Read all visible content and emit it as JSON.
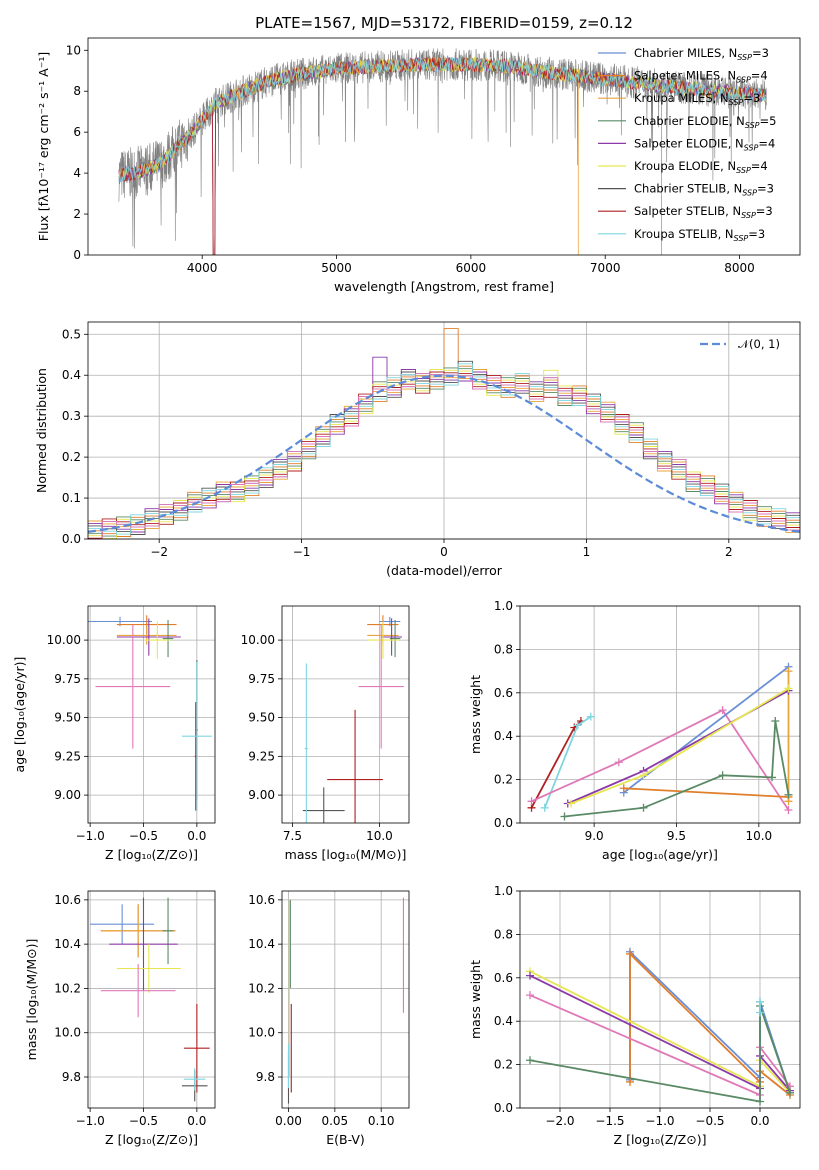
{
  "colors": {
    "Chabrier MILES": "#6a8fd6",
    "Salpeter MILES": "#e07e2c",
    "Kroupa MILES": "#e8a33b",
    "Chabrier ELODIE": "#5a8a65",
    "Salpeter ELODIE": "#8b3aa8",
    "Kroupa ELODIE": "#e6e650",
    "Chabrier STELIB": "#555555",
    "Salpeter STELIB": "#b02020",
    "Kroupa STELIB": "#7fd6e0",
    "pink": "#e078b8",
    "spectrum": "#808080",
    "normal": "#5b8bd9"
  },
  "chart_data": [
    {
      "id": "spectrum",
      "type": "line",
      "title": "PLATE=1567, MJD=53172, FIBERID=0159, z=0.12",
      "xlabel": "wavelength [Angstrom, rest frame]",
      "ylabel": "Flux [fλ10⁻¹⁷ erg cm⁻² s⁻¹ A⁻¹]",
      "xlim": [
        3150,
        8450
      ],
      "ylim": [
        0,
        10.6
      ],
      "xticks": [
        4000,
        5000,
        6000,
        7000,
        8000
      ],
      "yticks": [
        0,
        2,
        4,
        6,
        8,
        10
      ],
      "continuum": {
        "x": [
          3380,
          3500,
          3600,
          3700,
          3800,
          3900,
          4000,
          4100,
          4300,
          4500,
          4700,
          5000,
          5300,
          5600,
          6000,
          6300,
          6600,
          7000,
          7400,
          7800,
          8200
        ],
        "y": [
          3.9,
          4.0,
          4.2,
          4.5,
          5.2,
          5.8,
          6.6,
          7.4,
          8.0,
          8.5,
          8.8,
          9.1,
          9.2,
          9.3,
          9.3,
          9.2,
          8.9,
          8.6,
          8.3,
          8.0,
          7.8
        ]
      },
      "legend": [
        {
          "name": "Chabrier MILES",
          "n_ssp": "3"
        },
        {
          "name": "Salpeter MILES",
          "n_ssp": "4"
        },
        {
          "name": "Kroupa MILES",
          "n_ssp": "3"
        },
        {
          "name": "Chabrier ELODIE",
          "n_ssp": "5"
        },
        {
          "name": "Salpeter ELODIE",
          "n_ssp": "4"
        },
        {
          "name": "Kroupa ELODIE",
          "n_ssp": "4"
        },
        {
          "name": "Chabrier STELIB",
          "n_ssp": "3"
        },
        {
          "name": "Salpeter STELIB",
          "n_ssp": "3"
        },
        {
          "name": "Kroupa STELIB",
          "n_ssp": "3"
        }
      ]
    },
    {
      "id": "residuals",
      "type": "line",
      "xlabel": "(data-model)/error",
      "ylabel": "Normed distribution",
      "xlim": [
        -2.5,
        2.5
      ],
      "ylim": [
        0,
        0.53
      ],
      "xticks": [
        -2,
        -1,
        0,
        1,
        2
      ],
      "yticks": [
        0.0,
        0.1,
        0.2,
        0.3,
        0.4,
        0.5
      ],
      "legend_label": "𝒩(0, 1)",
      "bin_width": 0.1,
      "base_hist": [
        0.02,
        0.025,
        0.03,
        0.035,
        0.05,
        0.06,
        0.07,
        0.09,
        0.1,
        0.115,
        0.115,
        0.13,
        0.15,
        0.17,
        0.19,
        0.22,
        0.25,
        0.28,
        0.3,
        0.33,
        0.36,
        0.37,
        0.39,
        0.38,
        0.39,
        0.4,
        0.41,
        0.39,
        0.375,
        0.37,
        0.38,
        0.36,
        0.37,
        0.35,
        0.35,
        0.33,
        0.31,
        0.28,
        0.26,
        0.22,
        0.19,
        0.17,
        0.14,
        0.13,
        0.11,
        0.09,
        0.07,
        0.055,
        0.05,
        0.04
      ]
    },
    {
      "id": "Z-age",
      "type": "scatter",
      "xlabel": "Z [log₁₀(Z/Z⊙)]",
      "ylabel": "age  [log₁₀(age/yr)]",
      "xlim": [
        -1.02,
        0.17
      ],
      "ylim": [
        8.82,
        10.22
      ],
      "xticks": [
        -1.0,
        -0.5,
        0.0
      ],
      "yticks": [
        9.0,
        9.25,
        9.5,
        9.75,
        10.0
      ],
      "points": [
        {
          "series": "Chabrier MILES",
          "x": -0.72,
          "y": 10.12,
          "xerr": 0.3,
          "yerr": 0.03
        },
        {
          "series": "Salpeter MILES",
          "x": -0.47,
          "y": 10.1,
          "xerr": 0.28,
          "yerr": 0.06
        },
        {
          "series": "Kroupa MILES",
          "x": -0.47,
          "y": 10.03,
          "xerr": 0.28,
          "yerr": 0.06
        },
        {
          "series": "Chabrier ELODIE",
          "x": -0.27,
          "y": 10.01,
          "xerr": 0.05,
          "yerr": 0.12
        },
        {
          "series": "Salpeter ELODIE",
          "x": -0.45,
          "y": 10.02,
          "xerr": 0.3,
          "yerr": 0.12
        },
        {
          "series": "Kroupa ELODIE",
          "x": -0.37,
          "y": 10.0,
          "xerr": 0.12,
          "yerr": 0.12
        },
        {
          "series": "pink",
          "x": -0.6,
          "y": 9.7,
          "xerr": 0.35,
          "yerr": 0.4
        },
        {
          "series": "Chabrier STELIB",
          "x": 0.0,
          "y": 9.42,
          "xerr": 0.01,
          "yerr": 0.45
        },
        {
          "series": "Salpeter STELIB",
          "x": -0.01,
          "y": 9.25,
          "xerr": 0.01,
          "yerr": 0.35
        },
        {
          "series": "Kroupa STELIB",
          "x": 0.0,
          "y": 9.38,
          "xerr": 0.14,
          "yerr": 0.48
        }
      ]
    },
    {
      "id": "mass-age",
      "type": "scatter",
      "xlabel": "mass [log₁₀(M/M⊙)]",
      "ylabel": "",
      "xlim": [
        7.2,
        10.85
      ],
      "ylim": [
        8.82,
        10.22
      ],
      "xticks": [
        7.5,
        10.0
      ],
      "yticks": [
        9.0,
        9.25,
        9.5,
        9.75,
        10.0
      ],
      "points": [
        {
          "series": "Chabrier MILES",
          "x": 10.3,
          "y": 10.12,
          "xerr": 0.3,
          "yerr": 0.03
        },
        {
          "series": "Salpeter MILES",
          "x": 10.1,
          "y": 10.1,
          "xerr": 0.45,
          "yerr": 0.06
        },
        {
          "series": "Kroupa MILES",
          "x": 10.1,
          "y": 10.03,
          "xerr": 0.45,
          "yerr": 0.06
        },
        {
          "series": "Chabrier ELODIE",
          "x": 10.45,
          "y": 10.01,
          "xerr": 0.15,
          "yerr": 0.12
        },
        {
          "series": "Salpeter ELODIE",
          "x": 10.35,
          "y": 10.02,
          "xerr": 0.3,
          "yerr": 0.12
        },
        {
          "series": "Kroupa ELODIE",
          "x": 10.1,
          "y": 10.0,
          "xerr": 0.45,
          "yerr": 0.12
        },
        {
          "series": "pink",
          "x": 10.05,
          "y": 9.7,
          "xerr": 0.65,
          "yerr": 0.4
        },
        {
          "series": "Chabrier STELIB",
          "x": 8.4,
          "y": 8.9,
          "xerr": 0.6,
          "yerr": 0.15
        },
        {
          "series": "Salpeter STELIB",
          "x": 9.3,
          "y": 9.1,
          "xerr": 0.8,
          "yerr": 0.45
        },
        {
          "series": "Kroupa STELIB",
          "x": 7.9,
          "y": 9.3,
          "xerr": 0.05,
          "yerr": 0.55
        }
      ]
    },
    {
      "id": "weight-age",
      "type": "line",
      "xlabel": "age  [log₁₀(age/yr)]",
      "ylabel": "mass weight",
      "xlim": [
        8.55,
        10.25
      ],
      "ylim": [
        0,
        1.0
      ],
      "xticks": [
        9.0,
        9.5,
        10.0
      ],
      "yticks": [
        0.0,
        0.2,
        0.4,
        0.6,
        0.8,
        1.0
      ],
      "series": [
        {
          "name": "Salpeter STELIB",
          "x": [
            8.62,
            8.88,
            8.92
          ],
          "y": [
            0.07,
            0.44,
            0.47
          ]
        },
        {
          "name": "Kroupa STELIB",
          "x": [
            8.7,
            8.9,
            8.98
          ],
          "y": [
            0.07,
            0.45,
            0.49
          ]
        },
        {
          "name": "pink",
          "x": [
            8.62,
            9.15,
            9.78,
            10.18
          ],
          "y": [
            0.1,
            0.28,
            0.52,
            0.06
          ]
        },
        {
          "name": "Chabrier MILES",
          "x": [
            9.18,
            10.18
          ],
          "y": [
            0.14,
            0.72
          ]
        },
        {
          "name": "Salpeter MILES",
          "x": [
            9.18,
            10.18
          ],
          "y": [
            0.16,
            0.12
          ]
        },
        {
          "name": "Kroupa MILES",
          "x": [
            10.18,
            10.18
          ],
          "y": [
            0.1,
            0.7
          ]
        },
        {
          "name": "Chabrier ELODIE",
          "x": [
            8.82,
            9.3,
            9.78,
            10.08,
            10.1,
            10.18
          ],
          "y": [
            0.03,
            0.07,
            0.22,
            0.21,
            0.47,
            0.13
          ]
        },
        {
          "name": "Salpeter ELODIE",
          "x": [
            8.84,
            9.3,
            10.18
          ],
          "y": [
            0.09,
            0.24,
            0.61
          ]
        },
        {
          "name": "Kroupa ELODIE",
          "x": [
            8.86,
            9.3,
            10.18
          ],
          "y": [
            0.09,
            0.22,
            0.62
          ]
        }
      ]
    },
    {
      "id": "Z-mass",
      "type": "scatter",
      "xlabel": "Z [log₁₀(Z/Z⊙)]",
      "ylabel": "mass [log₁₀(M/M⊙)]",
      "xlim": [
        -1.02,
        0.17
      ],
      "ylim": [
        9.66,
        10.64
      ],
      "xticks": [
        -1.0,
        -0.5,
        0.0
      ],
      "yticks": [
        9.8,
        10.0,
        10.2,
        10.4,
        10.6
      ],
      "points": [
        {
          "series": "Chabrier MILES",
          "x": -0.7,
          "y": 10.49,
          "xerr": 0.3,
          "yerr": 0.09
        },
        {
          "series": "Salpeter MILES",
          "x": -0.55,
          "y": 10.46,
          "xerr": 0.35,
          "yerr": 0.12
        },
        {
          "series": "Kroupa MILES",
          "x": -0.55,
          "y": 10.46,
          "xerr": 0.35,
          "yerr": 0.12
        },
        {
          "series": "Chabrier ELODIE",
          "x": -0.27,
          "y": 10.46,
          "xerr": 0.05,
          "yerr": 0.15
        },
        {
          "series": "Salpeter ELODIE",
          "x": -0.5,
          "y": 10.4,
          "xerr": 0.32,
          "yerr": 0.21
        },
        {
          "series": "Kroupa ELODIE",
          "x": -0.45,
          "y": 10.29,
          "xerr": 0.3,
          "yerr": 0.11
        },
        {
          "series": "pink",
          "x": -0.55,
          "y": 10.19,
          "xerr": 0.35,
          "yerr": 0.12
        },
        {
          "series": "Chabrier STELIB",
          "x": -0.02,
          "y": 9.76,
          "xerr": 0.12,
          "yerr": 0.07
        },
        {
          "series": "Salpeter STELIB",
          "x": 0.0,
          "y": 9.93,
          "xerr": 0.12,
          "yerr": 0.2
        },
        {
          "series": "Kroupa STELIB",
          "x": -0.02,
          "y": 9.79,
          "xerr": 0.1,
          "yerr": 0.05
        }
      ]
    },
    {
      "id": "ebv-mass",
      "type": "scatter",
      "xlabel": "E(B-V)",
      "ylabel": "",
      "xlim": [
        -0.007,
        0.13
      ],
      "ylim": [
        9.66,
        10.64
      ],
      "xticks": [
        0.0,
        0.05,
        0.1
      ],
      "yticks": [
        9.8,
        10.0,
        10.2,
        10.4,
        10.6
      ],
      "points": [
        {
          "series": "Kroupa ELODIE",
          "x": 0.001,
          "y": 10.2,
          "xerr": 0.0,
          "yerr": 0.4
        },
        {
          "series": "Chabrier ELODIE",
          "x": 0.002,
          "y": 10.4,
          "xerr": 0.0,
          "yerr": 0.2
        },
        {
          "series": "Salpeter STELIB",
          "x": 0.003,
          "y": 9.93,
          "xerr": 0.0,
          "yerr": 0.2
        },
        {
          "series": "Chabrier STELIB",
          "x": 0.0,
          "y": 9.8,
          "xerr": 0.0,
          "yerr": 0.12
        },
        {
          "series": "Kroupa STELIB",
          "x": 0.0,
          "y": 9.85,
          "xerr": 0.0,
          "yerr": 0.1
        },
        {
          "series": "pink",
          "x": 0.124,
          "y": 10.35,
          "xerr": 0.0,
          "yerr": 0.26
        }
      ]
    },
    {
      "id": "weight-Z",
      "type": "line",
      "xlabel": "Z [log₁₀(Z/Z⊙)]",
      "ylabel": "mass weight",
      "xlim": [
        -2.4,
        0.4
      ],
      "ylim": [
        0,
        1.0
      ],
      "xticks": [
        -2.0,
        -1.5,
        -1.0,
        -0.5,
        0.0
      ],
      "yticks": [
        0.0,
        0.2,
        0.4,
        0.6,
        0.8,
        1.0
      ],
      "series": [
        {
          "name": "Chabrier MILES",
          "x": [
            -1.3,
            -1.3,
            0.0,
            0.0,
            0.3
          ],
          "y": [
            0.13,
            0.72,
            0.14,
            0.49,
            0.07
          ]
        },
        {
          "name": "Salpeter MILES",
          "x": [
            -1.3,
            -1.3,
            0.0,
            0.0,
            0.3
          ],
          "y": [
            0.12,
            0.71,
            0.12,
            0.17,
            0.06
          ]
        },
        {
          "name": "Kroupa ELODIE",
          "x": [
            -2.3,
            0.0,
            0.0,
            0.3
          ],
          "y": [
            0.63,
            0.1,
            0.22,
            0.07
          ]
        },
        {
          "name": "Salpeter ELODIE",
          "x": [
            -2.3,
            0.0,
            0.0,
            0.3
          ],
          "y": [
            0.61,
            0.09,
            0.24,
            0.08
          ]
        },
        {
          "name": "pink",
          "x": [
            -2.3,
            0.0,
            0.0,
            0.3
          ],
          "y": [
            0.52,
            0.06,
            0.28,
            0.1
          ]
        },
        {
          "name": "Chabrier ELODIE",
          "x": [
            -2.3,
            0.0,
            0.0,
            0.3
          ],
          "y": [
            0.22,
            0.03,
            0.47,
            0.07
          ]
        },
        {
          "name": "Kroupa STELIB",
          "x": [
            0.0,
            0.0
          ],
          "y": [
            0.44,
            0.49
          ]
        }
      ]
    }
  ]
}
